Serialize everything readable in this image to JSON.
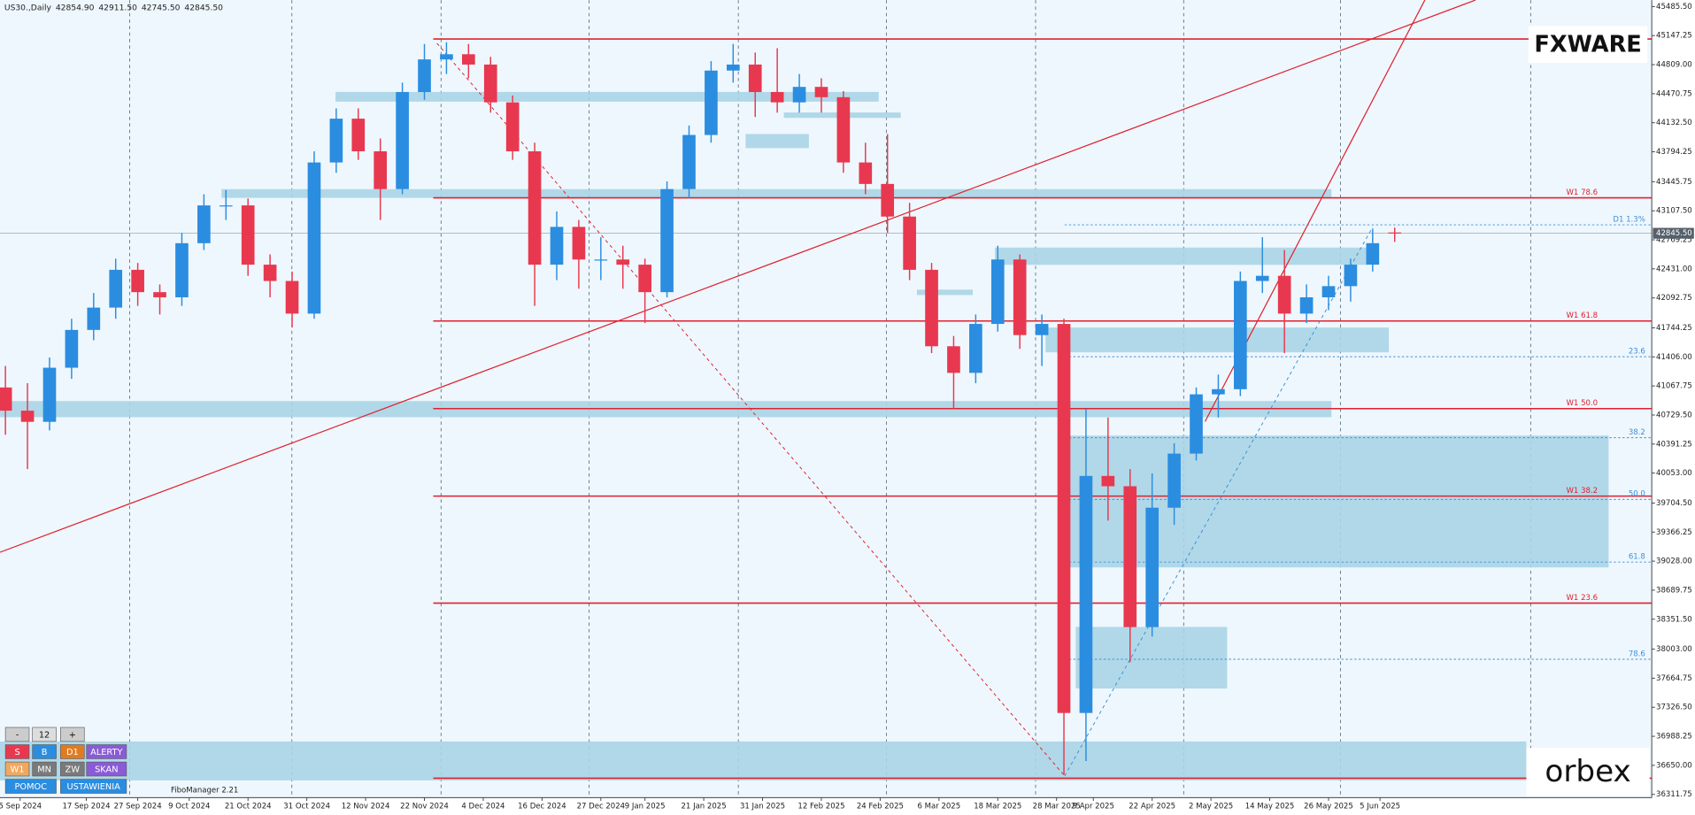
{
  "chart_data": {
    "type": "candlestick",
    "header": {
      "symbol": "US30.,Daily",
      "ohlc_labels": [
        "42854.90",
        "42911.50",
        "42745.50",
        "42845.50"
      ]
    },
    "colors": {
      "up": "#2b8de0",
      "down": "#e8384f",
      "zone": "#a9d4e6",
      "level": "#e0202e",
      "fib": "#3f8fd6",
      "background": "#eef7fd"
    },
    "x": [
      0,
      3,
      6,
      9,
      12,
      15,
      18,
      21,
      24,
      27,
      30,
      33,
      36,
      39,
      42,
      45,
      48,
      51,
      54,
      57,
      60,
      63,
      66,
      69,
      72,
      75,
      78,
      81,
      84,
      87,
      90,
      93,
      96,
      99,
      102,
      105,
      108,
      111,
      114,
      117,
      120,
      123,
      126,
      129,
      132,
      135,
      138,
      141,
      144,
      147,
      150,
      153,
      156,
      159,
      162,
      165,
      168,
      171,
      174,
      177,
      180,
      183,
      186,
      189
    ],
    "ohlc": [
      [
        41050,
        41300,
        40500,
        40780
      ],
      [
        40780,
        41100,
        40100,
        40650
      ],
      [
        40650,
        41400,
        40550,
        41280
      ],
      [
        41280,
        41850,
        41150,
        41720
      ],
      [
        41720,
        42150,
        41600,
        41980
      ],
      [
        41980,
        42550,
        41850,
        42420
      ],
      [
        42420,
        42500,
        42000,
        42160
      ],
      [
        42160,
        42250,
        41900,
        42100
      ],
      [
        42100,
        42850,
        42000,
        42730
      ],
      [
        42730,
        43300,
        42650,
        43170
      ],
      [
        43170,
        43350,
        43000,
        43170
      ],
      [
        43170,
        43250,
        42350,
        42480
      ],
      [
        42480,
        42600,
        42100,
        42290
      ],
      [
        42290,
        42400,
        41750,
        41910
      ],
      [
        41910,
        43800,
        41850,
        43670
      ],
      [
        43670,
        44300,
        43550,
        44180
      ],
      [
        44180,
        44300,
        43700,
        43800
      ],
      [
        43800,
        43950,
        43000,
        43360
      ],
      [
        43360,
        44600,
        43300,
        44490
      ],
      [
        44490,
        45050,
        44400,
        44870
      ],
      [
        44870,
        45070,
        44700,
        44930
      ],
      [
        44930,
        45050,
        44650,
        44810
      ],
      [
        44810,
        44900,
        44250,
        44370
      ],
      [
        44370,
        44450,
        43700,
        43800
      ],
      [
        43800,
        43900,
        42000,
        42480
      ],
      [
        42480,
        43100,
        42300,
        42920
      ],
      [
        42920,
        43000,
        42200,
        42540
      ],
      [
        42540,
        42800,
        42300,
        42540
      ],
      [
        42540,
        42700,
        42200,
        42480
      ],
      [
        42480,
        42550,
        41800,
        42160
      ],
      [
        42160,
        43450,
        42100,
        43360
      ],
      [
        43360,
        44100,
        43250,
        43990
      ],
      [
        43990,
        44850,
        43900,
        44740
      ],
      [
        44740,
        45050,
        44600,
        44810
      ],
      [
        44810,
        44950,
        44200,
        44490
      ],
      [
        44490,
        45000,
        44250,
        44370
      ],
      [
        44370,
        44700,
        44250,
        44550
      ],
      [
        44550,
        44650,
        44250,
        44430
      ],
      [
        44430,
        44500,
        43550,
        43670
      ],
      [
        43670,
        43900,
        43300,
        43420
      ],
      [
        43420,
        44000,
        42850,
        43040
      ],
      [
        43040,
        43200,
        42300,
        42420
      ],
      [
        42420,
        42500,
        41450,
        41530
      ],
      [
        41530,
        41650,
        40800,
        41220
      ],
      [
        41220,
        41900,
        41100,
        41790
      ],
      [
        41790,
        42700,
        41700,
        42540
      ],
      [
        42540,
        42600,
        41500,
        41660
      ],
      [
        41660,
        41900,
        41300,
        41790
      ],
      [
        41790,
        41850,
        36540,
        37260
      ],
      [
        37260,
        40800,
        36700,
        40020
      ],
      [
        40020,
        40700,
        39500,
        39900
      ],
      [
        39900,
        40100,
        37850,
        38260
      ],
      [
        38260,
        40050,
        38150,
        39650
      ],
      [
        39650,
        40400,
        39450,
        40280
      ],
      [
        40280,
        41050,
        40200,
        40970
      ],
      [
        40970,
        41200,
        40700,
        41030
      ],
      [
        41030,
        42400,
        40950,
        42290
      ],
      [
        42290,
        42800,
        42150,
        42350
      ],
      [
        42350,
        42650,
        41450,
        41910
      ],
      [
        41910,
        42250,
        41800,
        42100
      ],
      [
        42100,
        42350,
        41950,
        42230
      ],
      [
        42230,
        42550,
        42050,
        42480
      ],
      [
        42480,
        42900,
        42400,
        42730
      ],
      [
        42854.9,
        42911.5,
        42745.5,
        42845.5
      ]
    ],
    "xlim": [
      -0.74,
      223.97
    ],
    "ylim": [
      36274,
      45561
    ],
    "grid": false,
    "xticks": [
      {
        "value": 2,
        "label": "5 Sep 2024"
      },
      {
        "value": 11,
        "label": "17 Sep 2024"
      },
      {
        "value": 18,
        "label": "27 Sep 2024"
      },
      {
        "value": 25,
        "label": "9 Oct 2024"
      },
      {
        "value": 33,
        "label": "21 Oct 2024"
      },
      {
        "value": 41,
        "label": "31 Oct 2024"
      },
      {
        "value": 49,
        "label": "12 Nov 2024"
      },
      {
        "value": 57,
        "label": "22 Nov 2024"
      },
      {
        "value": 65,
        "label": "4 Dec 2024"
      },
      {
        "value": 73,
        "label": "16 Dec 2024"
      },
      {
        "value": 81,
        "label": "27 Dec 2024"
      },
      {
        "value": 87,
        "label": "9 Jan 2025"
      },
      {
        "value": 95,
        "label": "21 Jan 2025"
      },
      {
        "value": 103,
        "label": "31 Jan 2025"
      },
      {
        "value": 111,
        "label": "12 Feb 2025"
      },
      {
        "value": 119,
        "label": "24 Feb 2025"
      },
      {
        "value": 127,
        "label": "6 Mar 2025"
      },
      {
        "value": 135,
        "label": "18 Mar 2025"
      },
      {
        "value": 143,
        "label": "28 Mar 2025"
      },
      {
        "value": 148,
        "label": "9 Apr 2025"
      },
      {
        "value": 156,
        "label": "22 Apr 2025"
      },
      {
        "value": 164,
        "label": "2 May 2025"
      },
      {
        "value": 172,
        "label": "14 May 2025"
      },
      {
        "value": 180,
        "label": "26 May 2025"
      },
      {
        "value": 187,
        "label": "5 Jun 2025"
      }
    ],
    "yticks": [
      {
        "value": 45485.5,
        "label": "45485.50"
      },
      {
        "value": 45147.25,
        "label": "45147.25"
      },
      {
        "value": 44809,
        "label": "44809.00"
      },
      {
        "value": 44470.75,
        "label": "44470.75"
      },
      {
        "value": 44132.5,
        "label": "44132.50"
      },
      {
        "value": 43794.25,
        "label": "43794.25"
      },
      {
        "value": 43445.75,
        "label": "43445.75"
      },
      {
        "value": 43107.5,
        "label": "43107.50"
      },
      {
        "value": 42769.25,
        "label": "42769.25"
      },
      {
        "value": 42431,
        "label": "42431.00"
      },
      {
        "value": 42092.75,
        "label": "42092.75"
      },
      {
        "value": 41744.25,
        "label": "41744.25"
      },
      {
        "value": 41406,
        "label": "41406.00"
      },
      {
        "value": 41067.75,
        "label": "41067.75"
      },
      {
        "value": 40729.5,
        "label": "40729.50"
      },
      {
        "value": 40391.25,
        "label": "40391.25"
      },
      {
        "value": 40053,
        "label": "40053.00"
      },
      {
        "value": 39704.5,
        "label": "39704.50"
      },
      {
        "value": 39366.25,
        "label": "39366.25"
      },
      {
        "value": 39028,
        "label": "39028.00"
      },
      {
        "value": 38689.75,
        "label": "38689.75"
      },
      {
        "value": 38351.5,
        "label": "38351.50"
      },
      {
        "value": 38003,
        "label": "38003.00"
      },
      {
        "value": 37664.75,
        "label": "37664.75"
      },
      {
        "value": 37326.5,
        "label": "37326.50"
      },
      {
        "value": 36988.25,
        "label": "36988.25"
      },
      {
        "value": 36650,
        "label": "36650.00"
      },
      {
        "value": 36311.75,
        "label": "36311.75"
      }
    ],
    "last_price": {
      "value": 42845.5,
      "label": "42845.50"
    },
    "zones": [
      {
        "x": [
          -0.74,
          180.4
        ],
        "y": [
          40704,
          40892
        ]
      },
      {
        "x": [
          29.4,
          180.4
        ],
        "y": [
          43258,
          43359
        ]
      },
      {
        "x": [
          44.9,
          118.8
        ],
        "y": [
          44378,
          44491
        ]
      },
      {
        "x": [
          100.7,
          109.3
        ],
        "y": [
          43837,
          44001
        ]
      },
      {
        "x": [
          105.9,
          121.8
        ],
        "y": [
          44189,
          44252
        ]
      },
      {
        "x": [
          124,
          131.6
        ],
        "y": [
          42126,
          42189
        ]
      },
      {
        "x": [
          134.6,
          185.3
        ],
        "y": [
          42478,
          42679
        ]
      },
      {
        "x": [
          141.5,
          188.2
        ],
        "y": [
          41459,
          41748
        ]
      },
      {
        "x": [
          144.1,
          218.1
        ],
        "y": [
          38955,
          40490
        ]
      },
      {
        "x": [
          145.6,
          166.2
        ],
        "y": [
          37545,
          38262
        ]
      },
      {
        "x": [
          -0.74,
          206.9
        ],
        "y": [
          36475,
          36928
        ]
      }
    ],
    "levels": [
      {
        "value": 45108,
        "from": 58.2,
        "style": "solid"
      },
      {
        "value": 43258,
        "from": 58.2,
        "style": "solid",
        "label": "W1 78.6"
      },
      {
        "value": 41824,
        "from": 58.2,
        "style": "solid",
        "label": "W1 61.8"
      },
      {
        "value": 40804,
        "from": 58.2,
        "style": "solid",
        "label": "W1 50.0"
      },
      {
        "value": 39785,
        "from": 58.2,
        "style": "solid",
        "label": "W1 38.2"
      },
      {
        "value": 38539,
        "from": 58.2,
        "style": "solid",
        "label": "W1 23.6"
      },
      {
        "value": 36500,
        "from": 58.2,
        "style": "solid"
      },
      {
        "value": 42944,
        "from": 144.1,
        "style": "dashed",
        "label": "D1 1.3%"
      },
      {
        "value": 41408,
        "from": 144.1,
        "style": "dashed",
        "label": "23.6"
      },
      {
        "value": 40465,
        "from": 144.1,
        "style": "dashed",
        "label": "38.2"
      },
      {
        "value": 39747,
        "from": 144.1,
        "style": "dashed",
        "label": "50.0"
      },
      {
        "value": 39017,
        "from": 144.1,
        "style": "dashed",
        "label": "61.8"
      },
      {
        "value": 37885,
        "from": 144.1,
        "style": "dashed",
        "label": "78.6"
      }
    ],
    "trendlines": [
      {
        "points": [
          [
            -0.74,
            39131
          ],
          [
            199.99,
            45561
          ]
        ],
        "color": "#e0202e",
        "style": "solid"
      },
      {
        "points": [
          [
            163.2,
            40653
          ],
          [
            193.1,
            45561
          ]
        ],
        "color": "#e0202e",
        "style": "solid"
      },
      {
        "points": [
          [
            58.7,
            45058
          ],
          [
            144.1,
            36526
          ]
        ],
        "color": "#e0202e",
        "style": "dashed"
      },
      {
        "points": [
          [
            144.1,
            36526
          ],
          [
            186.0,
            42918
          ]
        ],
        "color": "#3f8fd6",
        "style": "dashed"
      }
    ]
  },
  "toolbar": {
    "rows": [
      [
        "-",
        "12",
        "+"
      ],
      [
        "S",
        "B",
        "D1",
        "ALERTY"
      ],
      [
        "W1",
        "MN",
        "ZW",
        "SKAN"
      ],
      [
        "POMOC",
        "USTAWIENIA"
      ]
    ],
    "footer": "FiboManager 2.21"
  },
  "brand": {
    "logo": "FXWARE",
    "broker": "orbex"
  }
}
